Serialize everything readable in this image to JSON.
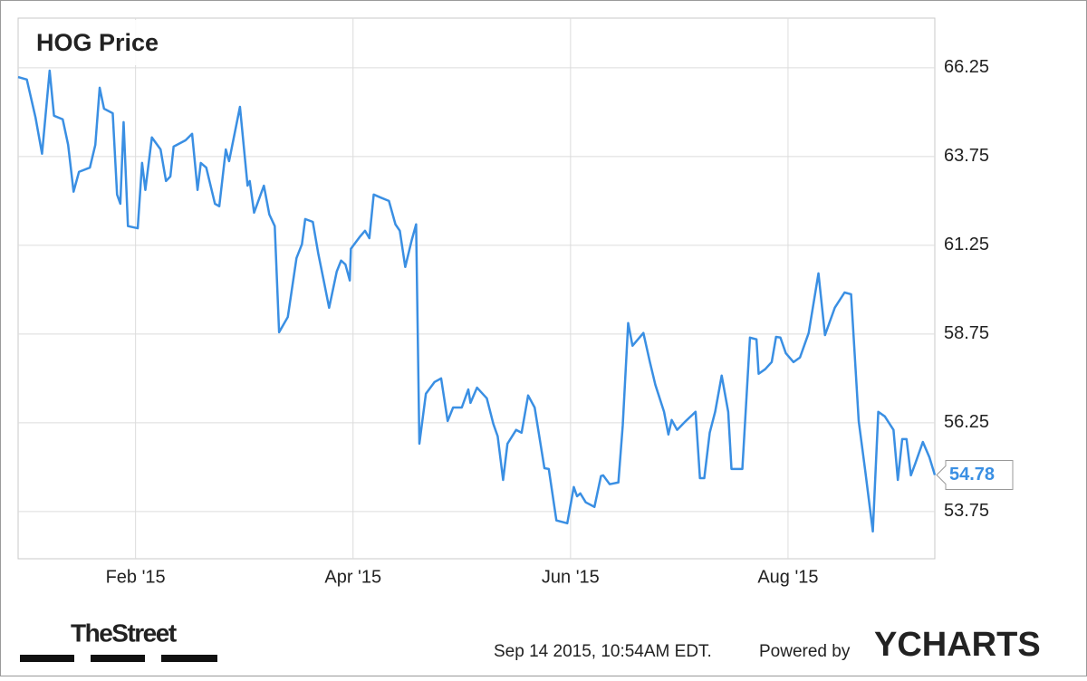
{
  "chart_data": {
    "type": "line",
    "title": "HOG Price",
    "x": [
      0.92,
      1.0,
      1.08,
      1.14,
      1.21,
      1.25,
      1.33,
      1.38,
      1.43,
      1.48,
      1.58,
      1.63,
      1.67,
      1.71,
      1.79,
      1.83,
      1.86,
      1.89,
      1.93,
      2.02,
      2.06,
      2.09,
      2.15,
      2.23,
      2.28,
      2.32,
      2.35,
      2.46,
      2.52,
      2.57,
      2.6,
      2.65,
      2.73,
      2.77,
      2.83,
      2.86,
      2.96,
      3.03,
      3.05,
      3.09,
      3.18,
      3.23,
      3.28,
      3.32,
      3.4,
      3.48,
      3.53,
      3.56,
      3.63,
      3.68,
      3.73,
      3.78,
      3.85,
      3.89,
      3.93,
      3.97,
      3.98,
      4.06,
      4.11,
      4.15,
      4.19,
      4.25,
      4.33,
      4.39,
      4.43,
      4.48,
      4.54,
      4.58,
      4.61,
      4.67,
      4.75,
      4.81,
      4.87,
      4.92,
      5.0,
      5.06,
      5.08,
      5.14,
      5.23,
      5.29,
      5.33,
      5.38,
      5.42,
      5.5,
      5.55,
      5.61,
      5.67,
      5.76,
      5.8,
      5.87,
      5.97,
      6.03,
      6.06,
      6.09,
      6.14,
      6.22,
      6.28,
      6.3,
      6.36,
      6.44,
      6.48,
      6.53,
      6.57,
      6.67,
      6.73,
      6.78,
      6.86,
      6.9,
      6.93,
      6.98,
      7.06,
      7.15,
      7.19,
      7.23,
      7.28,
      7.33,
      7.39,
      7.45,
      7.48,
      7.58,
      7.65,
      7.71,
      7.73,
      7.79,
      7.85,
      7.89,
      7.93,
      7.98,
      8.05,
      8.11,
      8.19,
      8.28,
      8.34,
      8.43,
      8.52,
      8.58,
      8.65,
      8.71,
      8.78,
      8.83,
      8.89,
      8.97,
      9.01,
      9.05,
      9.09,
      9.13,
      9.17,
      9.24,
      9.3,
      9.35
    ],
    "series": [
      {
        "name": "HOG Price",
        "color": "#3a8fe3",
        "values": [
          65.99,
          65.92,
          64.85,
          63.83,
          66.17,
          64.9,
          64.8,
          64.08,
          62.76,
          63.32,
          63.44,
          64.08,
          65.69,
          65.1,
          64.97,
          62.68,
          62.42,
          64.72,
          61.79,
          61.73,
          63.57,
          62.81,
          64.29,
          63.95,
          63.06,
          63.19,
          64.03,
          64.21,
          64.39,
          62.81,
          63.57,
          63.44,
          62.42,
          62.35,
          63.95,
          63.62,
          65.15,
          62.93,
          63.06,
          62.17,
          62.93,
          62.12,
          61.79,
          58.8,
          59.23,
          60.89,
          61.28,
          61.99,
          61.91,
          61.02,
          60.26,
          59.49,
          60.51,
          60.82,
          60.71,
          60.26,
          61.15,
          61.48,
          61.66,
          61.45,
          62.68,
          62.6,
          62.5,
          61.84,
          61.66,
          60.64,
          61.4,
          61.84,
          55.66,
          57.07,
          57.4,
          57.5,
          56.3,
          56.68,
          56.68,
          57.19,
          56.81,
          57.24,
          56.94,
          56.22,
          55.87,
          54.64,
          55.66,
          56.05,
          55.97,
          57.02,
          56.68,
          54.97,
          54.95,
          53.5,
          53.42,
          54.44,
          54.18,
          54.26,
          54.01,
          53.88,
          54.75,
          54.77,
          54.52,
          54.57,
          56.17,
          59.06,
          58.42,
          58.78,
          57.96,
          57.32,
          56.56,
          55.92,
          56.33,
          56.05,
          56.3,
          56.56,
          54.69,
          54.69,
          55.97,
          56.56,
          57.58,
          56.56,
          54.95,
          54.95,
          58.65,
          58.6,
          57.63,
          57.76,
          57.96,
          58.67,
          58.65,
          58.21,
          57.96,
          58.09,
          58.78,
          60.46,
          58.72,
          59.49,
          59.92,
          59.87,
          56.3,
          54.9,
          53.19,
          56.56,
          56.43,
          56.05,
          54.64,
          55.79,
          55.79,
          54.77,
          55.1,
          55.71,
          55.28,
          54.78
        ]
      }
    ],
    "xlim": [
      0.92,
      9.35
    ],
    "xticks": [
      {
        "value": 2,
        "label": "Feb '15"
      },
      {
        "value": 4,
        "label": "Apr '15"
      },
      {
        "value": 6,
        "label": "Jun '15"
      },
      {
        "value": 8,
        "label": "Aug '15"
      }
    ],
    "ylim": [
      52.42,
      67.65
    ],
    "yticks": [
      53.75,
      56.25,
      58.75,
      61.25,
      63.75,
      66.25
    ],
    "grid": true
  },
  "footer": {
    "source": "TheStreet",
    "timestamp": "Sep 14 2015, 10:54AM EDT.",
    "powered_by": "Powered by",
    "brand": "YCHARTS"
  }
}
